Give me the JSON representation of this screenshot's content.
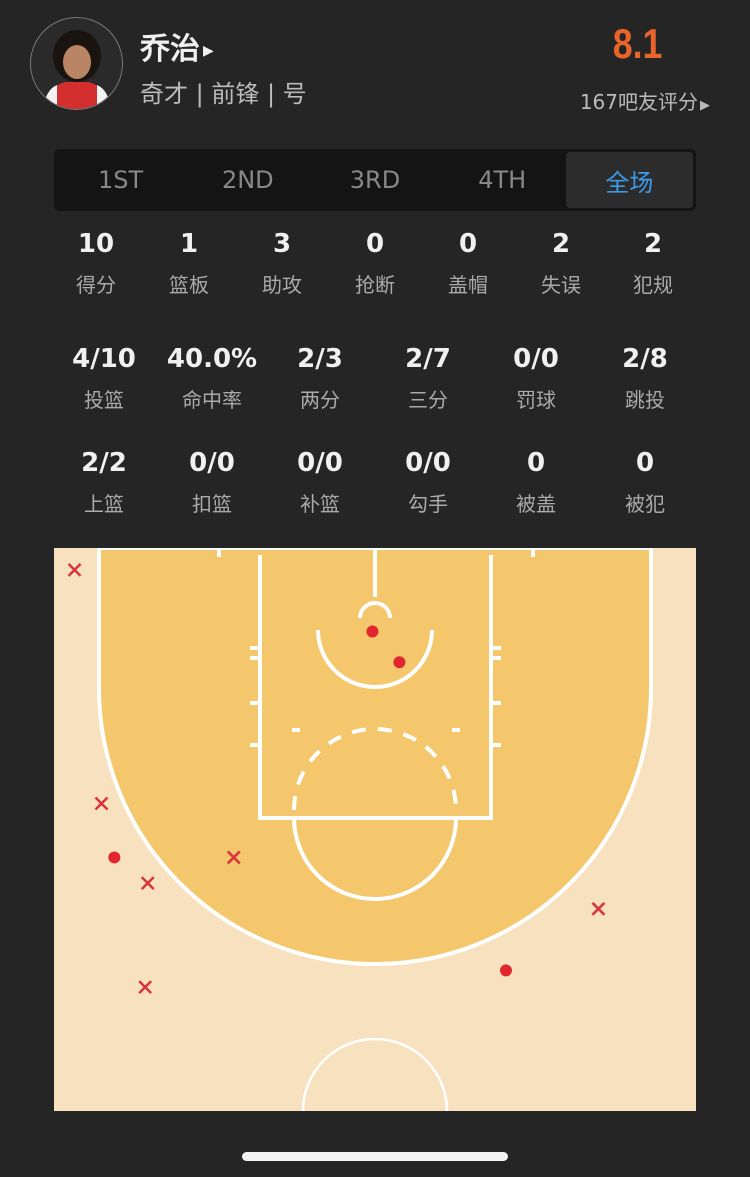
{
  "player": {
    "name": "乔治",
    "info": "奇才 | 前锋 | 号",
    "score": "8.1",
    "rating_label": "167吧友评分"
  },
  "tabs": [
    {
      "label": "1ST"
    },
    {
      "label": "2ND"
    },
    {
      "label": "3RD"
    },
    {
      "label": "4TH"
    },
    {
      "label": "全场",
      "active": true
    }
  ],
  "stats_row1": [
    {
      "v": "10",
      "l": "得分"
    },
    {
      "v": "1",
      "l": "篮板"
    },
    {
      "v": "3",
      "l": "助攻"
    },
    {
      "v": "0",
      "l": "抢断"
    },
    {
      "v": "0",
      "l": "盖帽"
    },
    {
      "v": "2",
      "l": "失误"
    },
    {
      "v": "2",
      "l": "犯规"
    }
  ],
  "stats_row2": [
    {
      "v": "4/10",
      "l": "投篮"
    },
    {
      "v": "40.0%",
      "l": "命中率"
    },
    {
      "v": "2/3",
      "l": "两分"
    },
    {
      "v": "2/7",
      "l": "三分"
    },
    {
      "v": "0/0",
      "l": "罚球"
    },
    {
      "v": "2/8",
      "l": "跳投"
    }
  ],
  "stats_row3": [
    {
      "v": "2/2",
      "l": "上篮"
    },
    {
      "v": "0/0",
      "l": "扣篮"
    },
    {
      "v": "0/0",
      "l": "补篮"
    },
    {
      "v": "0/0",
      "l": "勾手"
    },
    {
      "v": "0",
      "l": "被盖"
    },
    {
      "v": "0",
      "l": "被犯"
    }
  ],
  "colors": {
    "score": "#e8652a",
    "active_tab": "#3c9ae8",
    "made": "#e2262f",
    "miss": "#d9343c",
    "court_outer": "#f8e1bf",
    "court_paint": "#f5c76d"
  },
  "shot_chart": {
    "units": "feet",
    "shots": [
      {
        "x": -23.4,
        "y": 1.7,
        "made": false
      },
      {
        "x": -0.2,
        "y": 6.5,
        "made": true
      },
      {
        "x": 1.9,
        "y": 8.9,
        "made": true
      },
      {
        "x": -21.3,
        "y": 19.9,
        "made": false
      },
      {
        "x": -20.3,
        "y": 24.1,
        "made": true
      },
      {
        "x": -17.7,
        "y": 26.1,
        "made": false
      },
      {
        "x": -11.0,
        "y": 24.1,
        "made": false
      },
      {
        "x": -17.9,
        "y": 34.2,
        "made": false
      },
      {
        "x": 17.4,
        "y": 28.1,
        "made": false
      },
      {
        "x": 10.2,
        "y": 32.9,
        "made": true
      }
    ]
  }
}
